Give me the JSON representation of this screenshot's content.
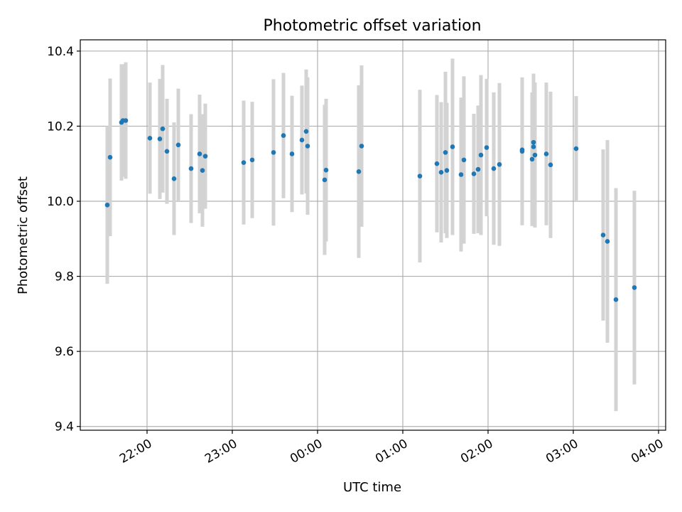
{
  "chart_data": {
    "type": "scatter",
    "title": "Photometric offset variation",
    "xlabel": "UTC time",
    "ylabel": "Photometric offset",
    "xlim": [
      "21:13",
      "04:05"
    ],
    "ylim": [
      9.39,
      10.43
    ],
    "grid": true,
    "x_ticks": [
      "22:00",
      "23:00",
      "00:00",
      "01:00",
      "02:00",
      "03:00",
      "04:00"
    ],
    "y_ticks": [
      "9.4",
      "9.6",
      "9.8",
      "10.0",
      "10.2",
      "10.4"
    ],
    "colors": {
      "point": "#1f77b4",
      "errorbar": "#d3d3d3",
      "grid": "#b0b0b0"
    },
    "series": [
      {
        "points": [
          {
            "x": "21:32",
            "y": 9.99,
            "err": 0.21
          },
          {
            "x": "21:34",
            "y": 10.117,
            "err": 0.21
          },
          {
            "x": "21:42",
            "y": 10.21,
            "err": 0.155
          },
          {
            "x": "21:43",
            "y": 10.215,
            "err": 0.15
          },
          {
            "x": "21:45",
            "y": 10.215,
            "err": 0.155
          },
          {
            "x": "22:02",
            "y": 10.168,
            "err": 0.148
          },
          {
            "x": "22:09",
            "y": 10.166,
            "err": 0.16
          },
          {
            "x": "22:11",
            "y": 10.193,
            "err": 0.17
          },
          {
            "x": "22:14",
            "y": 10.133,
            "err": 0.14
          },
          {
            "x": "22:19",
            "y": 10.06,
            "err": 0.15
          },
          {
            "x": "22:22",
            "y": 10.15,
            "err": 0.15
          },
          {
            "x": "22:31",
            "y": 10.087,
            "err": 0.145
          },
          {
            "x": "22:37",
            "y": 10.126,
            "err": 0.158
          },
          {
            "x": "22:39",
            "y": 10.082,
            "err": 0.15
          },
          {
            "x": "22:41",
            "y": 10.12,
            "err": 0.14
          },
          {
            "x": "23:08",
            "y": 10.103,
            "err": 0.165
          },
          {
            "x": "23:14",
            "y": 10.11,
            "err": 0.155
          },
          {
            "x": "23:29",
            "y": 10.13,
            "err": 0.195
          },
          {
            "x": "23:36",
            "y": 10.175,
            "err": 0.167
          },
          {
            "x": "23:42",
            "y": 10.126,
            "err": 0.155
          },
          {
            "x": "23:49",
            "y": 10.163,
            "err": 0.145
          },
          {
            "x": "23:52",
            "y": 10.186,
            "err": 0.165
          },
          {
            "x": "23:53",
            "y": 10.147,
            "err": 0.183
          },
          {
            "x": "00:05",
            "y": 10.057,
            "err": 0.2
          },
          {
            "x": "00:06",
            "y": 10.083,
            "err": 0.19
          },
          {
            "x": "00:29",
            "y": 10.079,
            "err": 0.23
          },
          {
            "x": "00:31",
            "y": 10.147,
            "err": 0.215
          },
          {
            "x": "01:12",
            "y": 10.067,
            "err": 0.23
          },
          {
            "x": "01:24",
            "y": 10.1,
            "err": 0.183
          },
          {
            "x": "01:27",
            "y": 10.077,
            "err": 0.187
          },
          {
            "x": "01:30",
            "y": 10.13,
            "err": 0.215
          },
          {
            "x": "01:31",
            "y": 10.082,
            "err": 0.18
          },
          {
            "x": "01:35",
            "y": 10.145,
            "err": 0.235
          },
          {
            "x": "01:41",
            "y": 10.071,
            "err": 0.205
          },
          {
            "x": "01:43",
            "y": 10.11,
            "err": 0.223
          },
          {
            "x": "01:50",
            "y": 10.073,
            "err": 0.16
          },
          {
            "x": "01:53",
            "y": 10.085,
            "err": 0.17
          },
          {
            "x": "01:55",
            "y": 10.123,
            "err": 0.213
          },
          {
            "x": "01:59",
            "y": 10.143,
            "err": 0.183
          },
          {
            "x": "02:04",
            "y": 10.087,
            "err": 0.203
          },
          {
            "x": "02:08",
            "y": 10.098,
            "err": 0.217
          },
          {
            "x": "02:24",
            "y": 10.133,
            "err": 0.197
          },
          {
            "x": "02:24",
            "y": 10.137,
            "err": 0.19
          },
          {
            "x": "02:31",
            "y": 10.112,
            "err": 0.178
          },
          {
            "x": "02:32",
            "y": 10.157,
            "err": 0.183
          },
          {
            "x": "02:32",
            "y": 10.145,
            "err": 0.19
          },
          {
            "x": "02:33",
            "y": 10.123,
            "err": 0.193
          },
          {
            "x": "02:41",
            "y": 10.126,
            "err": 0.19
          },
          {
            "x": "02:44",
            "y": 10.097,
            "err": 0.195
          },
          {
            "x": "03:02",
            "y": 10.14,
            "err": 0.14
          },
          {
            "x": "03:21",
            "y": 9.91,
            "err": 0.228
          },
          {
            "x": "03:24",
            "y": 9.893,
            "err": 0.27
          },
          {
            "x": "03:30",
            "y": 9.738,
            "err": 0.297
          },
          {
            "x": "03:43",
            "y": 9.77,
            "err": 0.258
          }
        ]
      }
    ]
  }
}
